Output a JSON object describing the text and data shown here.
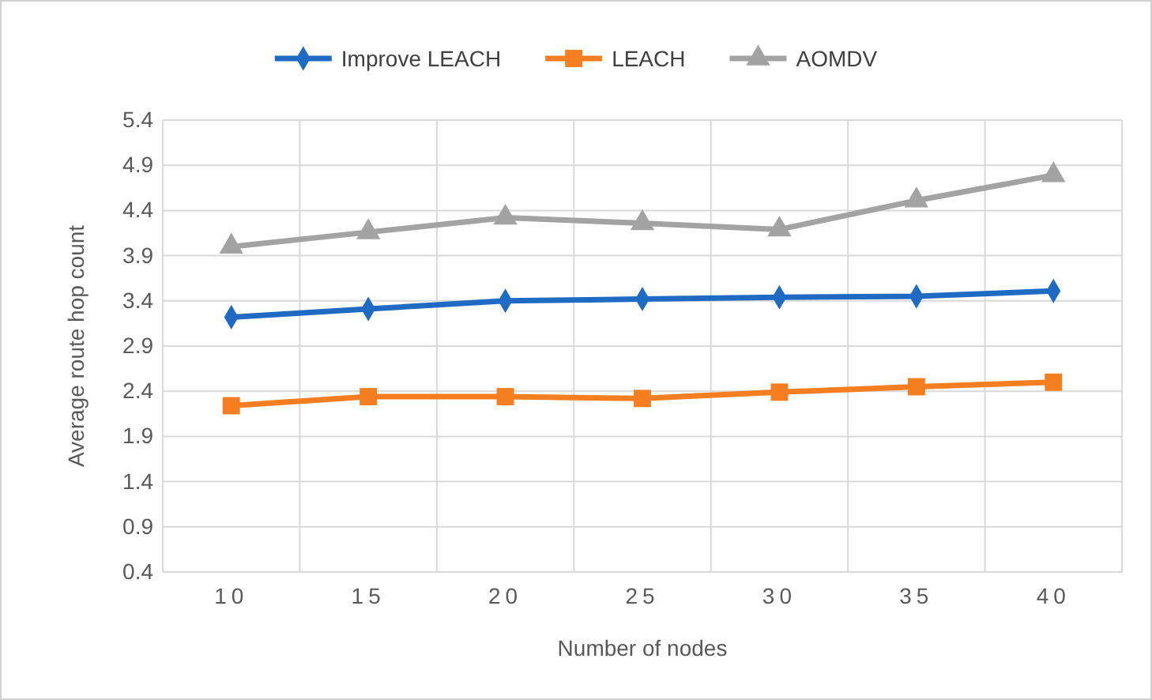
{
  "chart_data": {
    "type": "line",
    "xlabel": "Number of nodes",
    "ylabel": "Average route hop count",
    "categories": [
      "10",
      "15",
      "20",
      "25",
      "30",
      "35",
      "40"
    ],
    "series": [
      {
        "name": "Improve LEACH",
        "color": "#1f6bc4",
        "marker": "diamond",
        "values": [
          3.22,
          3.31,
          3.4,
          3.42,
          3.44,
          3.45,
          3.51
        ]
      },
      {
        "name": "LEACH",
        "color": "#f57f20",
        "marker": "square",
        "values": [
          2.24,
          2.34,
          2.34,
          2.32,
          2.39,
          2.45,
          2.5
        ]
      },
      {
        "name": "AOMDV",
        "color": "#a3a3a3",
        "marker": "triangle",
        "values": [
          4.0,
          4.16,
          4.32,
          4.26,
          4.19,
          4.51,
          4.79
        ]
      }
    ],
    "ylim": [
      0.4,
      5.4
    ],
    "yticks": [
      0.4,
      0.9,
      1.4,
      1.9,
      2.4,
      2.9,
      3.4,
      3.9,
      4.4,
      4.9,
      5.4
    ],
    "grid": true,
    "legend": "top"
  }
}
